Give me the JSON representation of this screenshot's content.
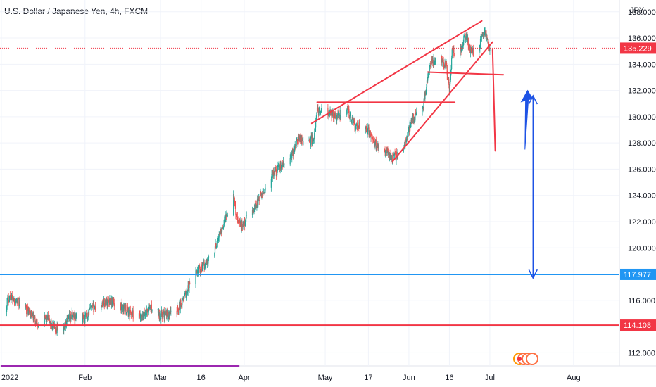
{
  "header": {
    "title": "U.S. Dollar / Japanese Yen, 4h, FXCM"
  },
  "chart_data": {
    "type": "candlestick",
    "symbol": "U.S. Dollar / Japanese Yen",
    "interval": "4h",
    "source": "FXCM",
    "currency_label": "JPY",
    "ylim": [
      111.0,
      138.9
    ],
    "y_ticks": [
      112,
      114,
      116,
      118,
      120,
      122,
      124,
      126,
      128,
      130,
      132,
      134,
      136,
      138
    ],
    "y_tick_labels": [
      "112.000",
      "114.000",
      "116.000",
      "118.000",
      "120.000",
      "122.000",
      "124.000",
      "126.000",
      "128.000",
      "130.000",
      "132.000",
      "134.000",
      "136.000",
      "138.000"
    ],
    "x_ticks": [
      {
        "label": "2022",
        "date": "2022-01-01"
      },
      {
        "label": "Feb",
        "date": "2022-02-01"
      },
      {
        "label": "Mar",
        "date": "2022-03-01"
      },
      {
        "label": "16",
        "date": "2022-03-16"
      },
      {
        "label": "Apr",
        "date": "2022-04-01"
      },
      {
        "label": "May",
        "date": "2022-05-01"
      },
      {
        "label": "17",
        "date": "2022-05-17"
      },
      {
        "label": "Jun",
        "date": "2022-06-01"
      },
      {
        "label": "16",
        "date": "2022-06-16"
      },
      {
        "label": "Jul",
        "date": "2022-07-01"
      },
      {
        "label": "Aug",
        "date": "2022-08-01"
      }
    ],
    "price_path": [
      [
        "2022-01-01",
        115.1
      ],
      [
        "2022-01-04",
        116.3
      ],
      [
        "2022-01-07",
        115.9
      ],
      [
        "2022-01-11",
        115.2
      ],
      [
        "2022-01-14",
        114.3
      ],
      [
        "2022-01-18",
        114.6
      ],
      [
        "2022-01-21",
        113.8
      ],
      [
        "2022-01-24",
        113.9
      ],
      [
        "2022-01-27",
        114.8
      ],
      [
        "2022-02-01",
        114.6
      ],
      [
        "2022-02-03",
        115.3
      ],
      [
        "2022-02-10",
        116.0
      ],
      [
        "2022-02-14",
        115.6
      ],
      [
        "2022-02-18",
        115.0
      ],
      [
        "2022-02-22",
        114.6
      ],
      [
        "2022-02-25",
        115.5
      ],
      [
        "2022-03-01",
        114.9
      ],
      [
        "2022-03-04",
        114.9
      ],
      [
        "2022-03-07",
        115.2
      ],
      [
        "2022-03-10",
        116.3
      ],
      [
        "2022-03-14",
        118.2
      ],
      [
        "2022-03-17",
        118.6
      ],
      [
        "2022-03-21",
        119.9
      ],
      [
        "2022-03-23",
        121.1
      ],
      [
        "2022-03-25",
        122.3
      ],
      [
        "2022-03-28",
        124.2
      ],
      [
        "2022-03-29",
        122.5
      ],
      [
        "2022-03-31",
        121.7
      ],
      [
        "2022-04-04",
        122.8
      ],
      [
        "2022-04-07",
        123.9
      ],
      [
        "2022-04-11",
        125.4
      ],
      [
        "2022-04-14",
        126.1
      ],
      [
        "2022-04-18",
        126.8
      ],
      [
        "2022-04-21",
        128.3
      ],
      [
        "2022-04-25",
        128.0
      ],
      [
        "2022-04-27",
        128.5
      ],
      [
        "2022-04-28",
        130.5
      ],
      [
        "2022-05-02",
        130.2
      ],
      [
        "2022-05-05",
        130.0
      ],
      [
        "2022-05-09",
        130.6
      ],
      [
        "2022-05-12",
        129.2
      ],
      [
        "2022-05-16",
        129.3
      ],
      [
        "2022-05-19",
        128.0
      ],
      [
        "2022-05-23",
        127.6
      ],
      [
        "2022-05-26",
        126.8
      ],
      [
        "2022-05-30",
        127.5
      ],
      [
        "2022-06-02",
        129.8
      ],
      [
        "2022-06-06",
        130.6
      ],
      [
        "2022-06-09",
        134.0
      ],
      [
        "2022-06-13",
        134.5
      ],
      [
        "2022-06-15",
        133.7
      ],
      [
        "2022-06-16",
        132.0
      ],
      [
        "2022-06-17",
        134.9
      ],
      [
        "2022-06-20",
        135.1
      ],
      [
        "2022-06-22",
        136.3
      ],
      [
        "2022-06-24",
        134.9
      ],
      [
        "2022-06-27",
        135.3
      ],
      [
        "2022-06-29",
        136.6
      ],
      [
        "2022-07-01",
        135.2
      ]
    ],
    "current_price": {
      "value": 135.229,
      "label": "135.229",
      "color": "#f23645"
    },
    "horizontal_levels": [
      {
        "value": 117.977,
        "label": "117.977",
        "color": "#2196f3"
      },
      {
        "value": 114.108,
        "label": "114.108",
        "color": "#f23645"
      }
    ],
    "annotations": {
      "channel_upper": [
        [
          "2022-04-26",
          129.5
        ],
        [
          "2022-06-28",
          137.3
        ]
      ],
      "channel_lower": [
        [
          "2022-05-26",
          126.6
        ],
        [
          "2022-07-02",
          135.7
        ]
      ],
      "resistance_1": [
        [
          "2022-04-28",
          131.1
        ],
        [
          "2022-06-18",
          131.1
        ]
      ],
      "resistance_2": [
        [
          "2022-06-08",
          133.4
        ],
        [
          "2022-07-06",
          133.2
        ]
      ],
      "drop_line": [
        [
          "2022-07-02",
          135.1
        ],
        [
          "2022-07-03",
          127.4
        ]
      ],
      "target_arrow": [
        [
          "2022-07-17",
          131.6
        ],
        [
          "2022-07-17",
          117.7
        ]
      ],
      "up_arrow": [
        [
          "2022-07-14",
          127.5
        ],
        [
          "2022-07-15",
          132.0
        ]
      ],
      "purple_line": [
        [
          "2022-01-01",
          111.0
        ],
        [
          "2022-03-30",
          111.0
        ]
      ]
    },
    "colors": {
      "up": "#26a69a",
      "down": "#ef5350",
      "grid": "#f0f3fa",
      "annotation_red": "#f23645",
      "annotation_blue": "#1e53e5",
      "purple": "#9c27b0"
    }
  }
}
